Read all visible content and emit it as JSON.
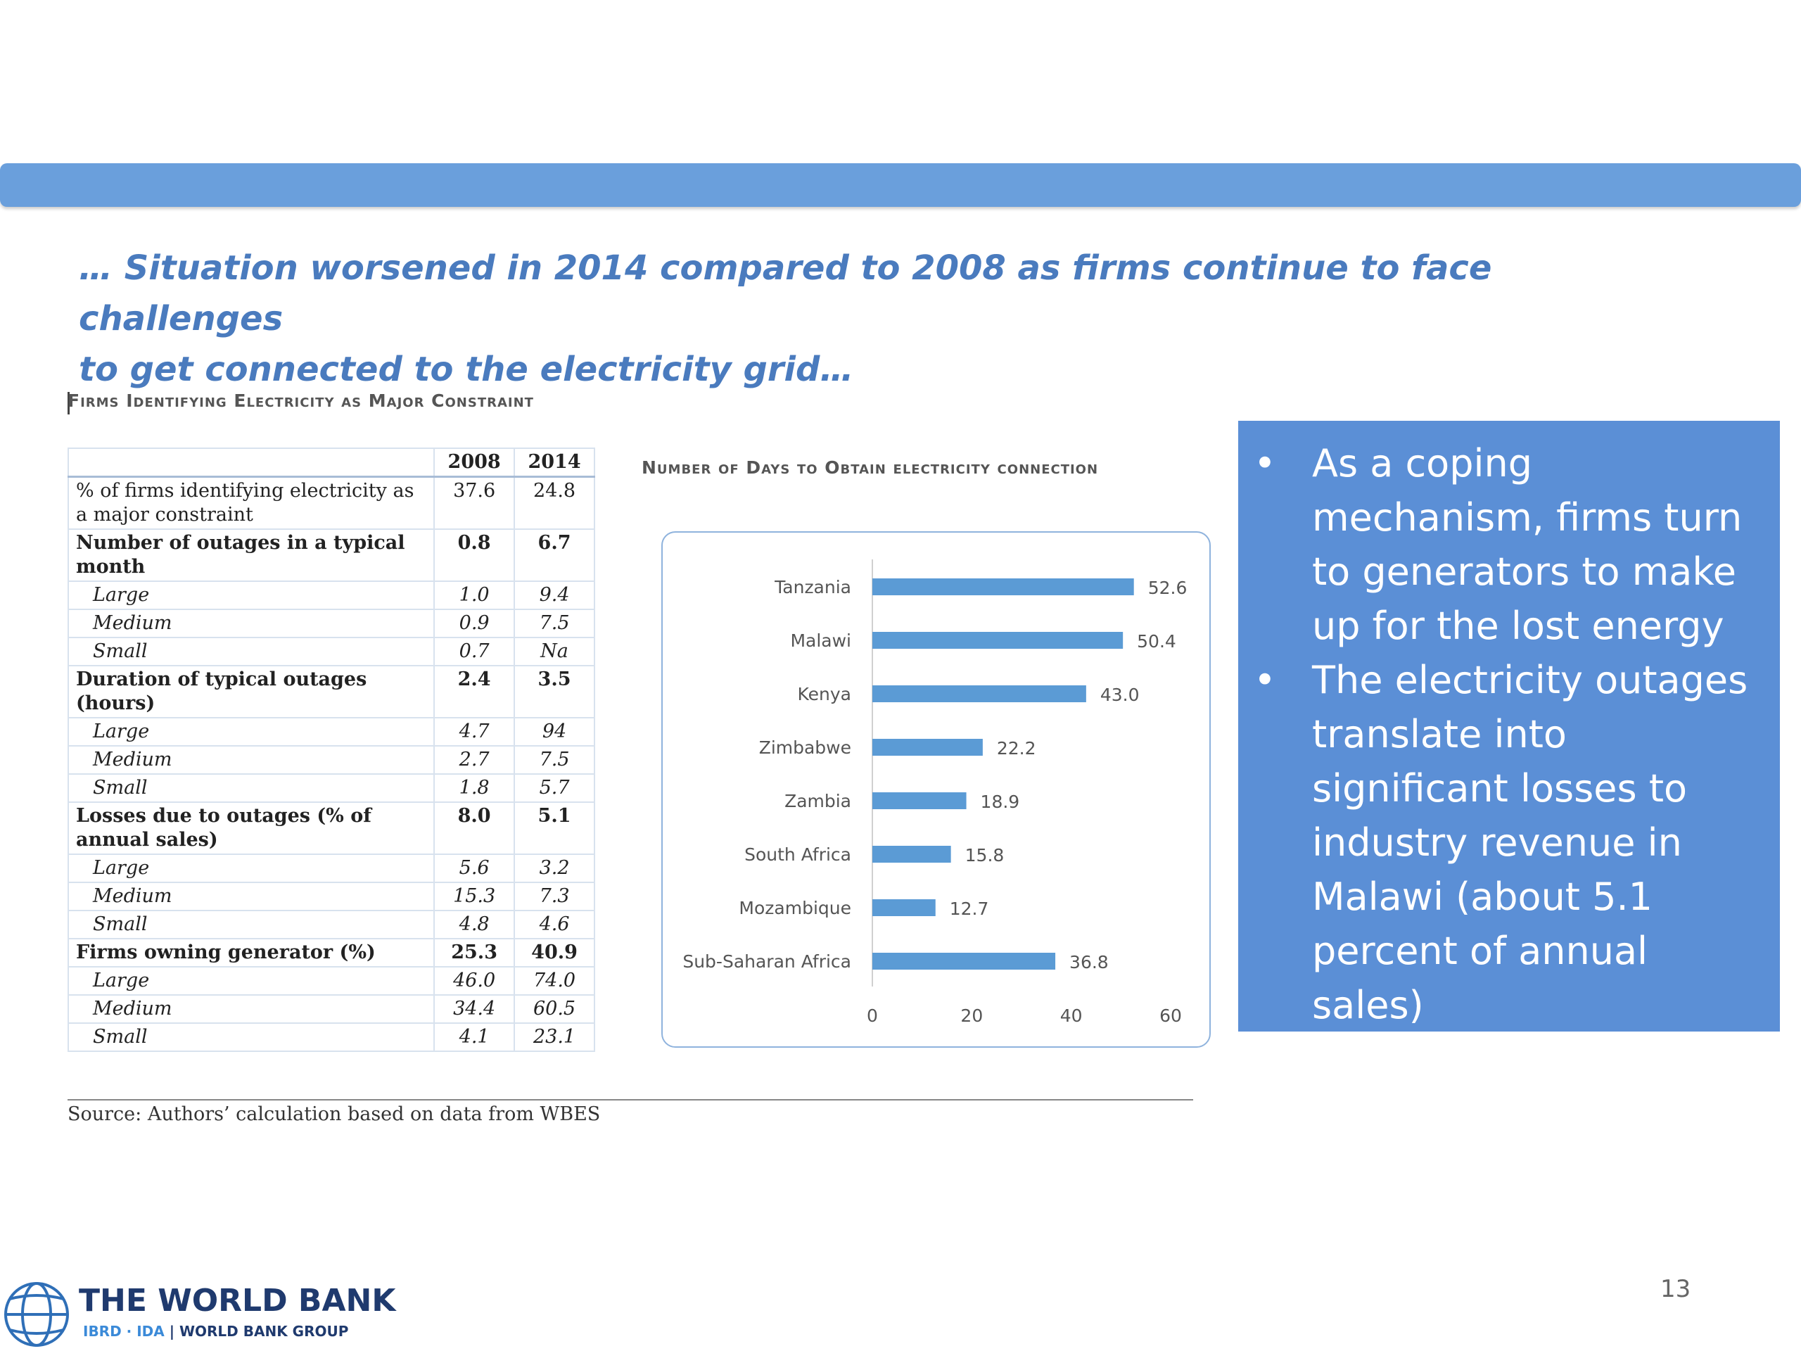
{
  "headline": {
    "line1": "… Situation worsened in 2014 compared to 2008 as firms continue to face challenges",
    "line2": "to get connected to the electricity grid…"
  },
  "table": {
    "title": "Firms Identifying Electricity as Major Constraint",
    "columns": [
      "",
      "2008",
      "2014"
    ],
    "rows": [
      {
        "label": "% of firms identifying electricity as a major constraint",
        "v2008": "37.6",
        "v2014": "24.8",
        "style": "normal"
      },
      {
        "label": "Number of outages in a typical month",
        "v2008": "0.8",
        "v2014": "6.7",
        "style": "head"
      },
      {
        "label": "Large",
        "v2008": "1.0",
        "v2014": "9.4",
        "style": "sub"
      },
      {
        "label": "Medium",
        "v2008": "0.9",
        "v2014": "7.5",
        "style": "sub"
      },
      {
        "label": "Small",
        "v2008": "0.7",
        "v2014": "Na",
        "style": "sub"
      },
      {
        "label": "Duration of typical outages (hours)",
        "v2008": "2.4",
        "v2014": "3.5",
        "style": "head"
      },
      {
        "label": "Large",
        "v2008": "4.7",
        "v2014": "94",
        "style": "sub"
      },
      {
        "label": "Medium",
        "v2008": "2.7",
        "v2014": "7.5",
        "style": "sub"
      },
      {
        "label": "Small",
        "v2008": "1.8",
        "v2014": "5.7",
        "style": "sub"
      },
      {
        "label": "Losses due to outages (% of annual sales)",
        "v2008": "8.0",
        "v2014": "5.1",
        "style": "head"
      },
      {
        "label": "Large",
        "v2008": "5.6",
        "v2014": "3.2",
        "style": "sub"
      },
      {
        "label": "Medium",
        "v2008": "15.3",
        "v2014": "7.3",
        "style": "sub"
      },
      {
        "label": "Small",
        "v2008": "4.8",
        "v2014": "4.6",
        "style": "sub"
      },
      {
        "label": "Firms owning generator (%)",
        "v2008": "25.3",
        "v2014": "40.9",
        "style": "head"
      },
      {
        "label": "Large",
        "v2008": "46.0",
        "v2014": "74.0",
        "style": "sub"
      },
      {
        "label": "Medium",
        "v2008": "34.4",
        "v2014": "60.5",
        "style": "sub"
      },
      {
        "label": "Small",
        "v2008": "4.1",
        "v2014": "23.1",
        "style": "sub"
      }
    ]
  },
  "chart_data": {
    "type": "bar",
    "orientation": "horizontal",
    "title": "Number of Days to Obtain electricity connection",
    "categories": [
      "Tanzania",
      "Malawi",
      "Kenya",
      "Zimbabwe",
      "Zambia",
      "South Africa",
      "Mozambique",
      "Sub-Saharan Africa"
    ],
    "values": [
      52.6,
      50.4,
      43.0,
      22.2,
      18.9,
      15.8,
      12.7,
      36.8
    ],
    "value_labels": [
      "52.6",
      "50.4",
      "43.0",
      "22.2",
      "18.9",
      "15.8",
      "12.7",
      "36.8"
    ],
    "xlim": [
      0,
      60
    ],
    "xticks": [
      "0",
      "20",
      "40",
      "60"
    ],
    "xlabel": "",
    "ylabel": "",
    "bar_color": "#5b9bd5",
    "grid": false,
    "legend": "none"
  },
  "source": "Source:  Authors’ calculation based on data from WBES",
  "bullets": {
    "items": [
      "As a coping mechanism, firms turn to generators to make up for the lost energy",
      "The electricity outages translate into significant losses to industry revenue in Malawi (about 5.1 percent of annual sales)"
    ],
    "bullet_glyph": "•"
  },
  "logo": {
    "name": "THE WORLD BANK",
    "sub_ibrd": "IBRD · IDA",
    "sub_sep": " | ",
    "sub_group": "WORLD BANK GROUP",
    "icon": "globe-icon"
  },
  "page_number": "13",
  "colors": {
    "header_bar": "#6a9fdc",
    "headline": "#4a7bbe",
    "bullet_box": "#5b8fd6",
    "bar": "#5b9bd5"
  }
}
